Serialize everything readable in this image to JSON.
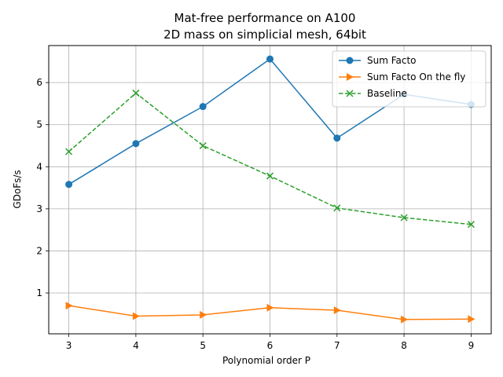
{
  "chart_data": {
    "type": "line",
    "title": "Mat-free performance on A100",
    "subtitle": "2D mass on simplicial mesh, 64bit",
    "xlabel": "Polynomial order P",
    "ylabel": "GDoFs/s",
    "x": [
      3,
      4,
      5,
      6,
      7,
      8,
      9
    ],
    "xlim": [
      2.7,
      9.3
    ],
    "ylim": [
      0.03,
      6.88
    ],
    "xticks": [
      3,
      4,
      5,
      6,
      7,
      8,
      9
    ],
    "yticks": [
      1,
      2,
      3,
      4,
      5,
      6
    ],
    "grid": true,
    "legend_position": "top-right",
    "series": [
      {
        "name": "Sum Facto",
        "values": [
          3.58,
          4.55,
          5.43,
          6.56,
          4.68,
          5.72,
          5.48
        ],
        "color": "#1f77b4",
        "marker": "circle",
        "linestyle": "solid"
      },
      {
        "name": "Sum Facto On the fly",
        "values": [
          0.7,
          0.45,
          0.48,
          0.65,
          0.59,
          0.37,
          0.38
        ],
        "color": "#ff7f0e",
        "marker": "triangle-right",
        "linestyle": "solid"
      },
      {
        "name": "Baseline",
        "values": [
          4.36,
          5.75,
          4.5,
          3.78,
          3.02,
          2.79,
          2.63
        ],
        "color": "#2ca02c",
        "marker": "x",
        "linestyle": "dashed"
      }
    ]
  }
}
